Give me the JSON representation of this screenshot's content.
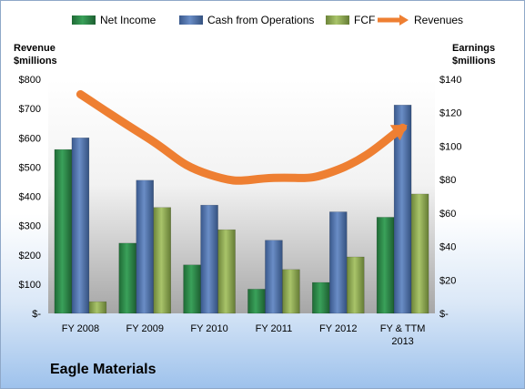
{
  "chart_data": {
    "type": "bar",
    "categories": [
      "FY 2008",
      "FY 2009",
      "FY 2010",
      "FY 2011",
      "FY 2012",
      "FY & TTM 2013"
    ],
    "series": [
      {
        "name": "Net Income",
        "axis": "right",
        "color": "#2f8a4a",
        "values": [
          98,
          42,
          29,
          14.5,
          18.5,
          57.5
        ]
      },
      {
        "name": "Cash from Operations",
        "axis": "left",
        "color": "#4f73ad",
        "values": [
          600,
          455,
          370,
          250,
          347,
          712
        ]
      },
      {
        "name": "FCF",
        "axis": "left",
        "color": "#8faa4e",
        "values": [
          40,
          362,
          286,
          150,
          193,
          408
        ]
      },
      {
        "name": "Revenues",
        "axis": "right",
        "type": "line",
        "color": "#ee7f32",
        "values": [
          131,
          106,
          83,
          81,
          86,
          111
        ]
      }
    ],
    "left_axis": {
      "title_lines": [
        "Revenue",
        "$millions"
      ],
      "ylim": [
        0,
        800
      ],
      "ticks": [
        0,
        100,
        200,
        300,
        400,
        500,
        600,
        700,
        800
      ],
      "tick_labels": [
        "$-",
        "$100",
        "$200",
        "$300",
        "$400",
        "$500",
        "$600",
        "$700",
        "$800"
      ]
    },
    "right_axis": {
      "title_lines": [
        "Earnings",
        "$millions"
      ],
      "ylim": [
        0,
        140
      ],
      "ticks": [
        0,
        20,
        40,
        60,
        80,
        100,
        120,
        140
      ],
      "tick_labels": [
        "$-",
        "$20",
        "$40",
        "$60",
        "$80",
        "$100",
        "$120",
        "$140"
      ]
    },
    "category_labels": [
      [
        "FY 2008"
      ],
      [
        "FY 2009"
      ],
      [
        "FY 2010"
      ],
      [
        "FY 2011"
      ],
      [
        "FY 2012"
      ],
      [
        "FY & TTM",
        "2013"
      ]
    ],
    "legend": {
      "placement": "top"
    },
    "grid": false
  },
  "company": "Eagle Materials"
}
